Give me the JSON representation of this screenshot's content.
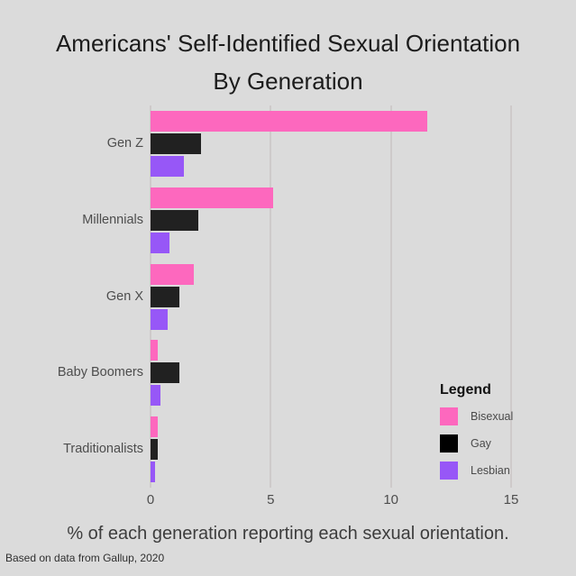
{
  "chart_data": {
    "type": "bar",
    "orientation": "horizontal",
    "title": "Americans' Self-Identified Sexual Orientation By Generation",
    "title_lines": [
      "Americans' Self-Identified Sexual Orientation",
      "By Generation"
    ],
    "categories": [
      "Gen Z",
      "Millennials",
      "Gen X",
      "Baby Boomers",
      "Traditionalists"
    ],
    "series": [
      {
        "name": "Bisexual",
        "color": "#fd68be",
        "values": [
          11.5,
          5.1,
          1.8,
          0.3,
          0.3
        ]
      },
      {
        "name": "Gay",
        "color": "#212121",
        "values": [
          2.1,
          2.0,
          1.2,
          1.2,
          0.3
        ]
      },
      {
        "name": "Lesbian",
        "color": "#9757f7",
        "values": [
          1.4,
          0.8,
          0.7,
          0.4,
          0.2
        ]
      }
    ],
    "xlabel": "% of each generation reporting each sexual orientation.",
    "ylabel": "",
    "xlim": [
      0,
      15
    ],
    "xticks": [
      0,
      5,
      10,
      15
    ],
    "grid": "vertical-major-only",
    "legend_position": "inside-right-bottom"
  },
  "legend": {
    "title": "Legend",
    "swatch_colors": {
      "Gay_legend_swatch": "#000000"
    }
  },
  "footnote": "Based on data from Gallup, 2020",
  "colors": {
    "background": "#dbdbdb",
    "gridline": "#cecaca",
    "axis_text": "#4d4d4d",
    "title_text": "#1c1c1c",
    "caption_text": "#3d3d3d"
  }
}
